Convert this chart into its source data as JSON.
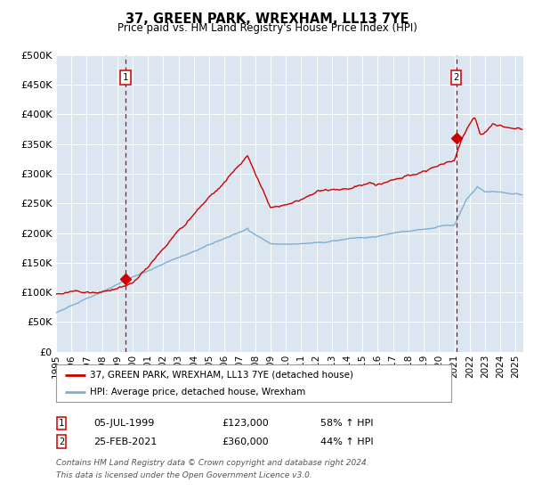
{
  "title": "37, GREEN PARK, WREXHAM, LL13 7YE",
  "subtitle": "Price paid vs. HM Land Registry's House Price Index (HPI)",
  "fig_bg_color": "#ffffff",
  "plot_bg_color": "#dce6f0",
  "red_line_color": "#cc0000",
  "blue_line_color": "#7bafd4",
  "vline_color": "#cc0000",
  "ylim": [
    0,
    500000
  ],
  "yticks": [
    0,
    50000,
    100000,
    150000,
    200000,
    250000,
    300000,
    350000,
    400000,
    450000,
    500000
  ],
  "xlim_start": 1995.0,
  "xlim_end": 2025.5,
  "sale1_date": 1999.52,
  "sale1_price": 123000,
  "sale1_label": "05-JUL-1999",
  "sale1_pct": "58% ↑ HPI",
  "sale2_date": 2021.12,
  "sale2_price": 360000,
  "sale2_label": "25-FEB-2021",
  "sale2_pct": "44% ↑ HPI",
  "legend_red": "37, GREEN PARK, WREXHAM, LL13 7YE (detached house)",
  "legend_blue": "HPI: Average price, detached house, Wrexham",
  "footnote_line1": "Contains HM Land Registry data © Crown copyright and database right 2024.",
  "footnote_line2": "This data is licensed under the Open Government Licence v3.0.",
  "xtick_years": [
    1995,
    1996,
    1997,
    1998,
    1999,
    2000,
    2001,
    2002,
    2003,
    2004,
    2005,
    2006,
    2007,
    2008,
    2009,
    2010,
    2011,
    2012,
    2013,
    2014,
    2015,
    2016,
    2017,
    2018,
    2019,
    2020,
    2021,
    2022,
    2023,
    2024,
    2025
  ]
}
